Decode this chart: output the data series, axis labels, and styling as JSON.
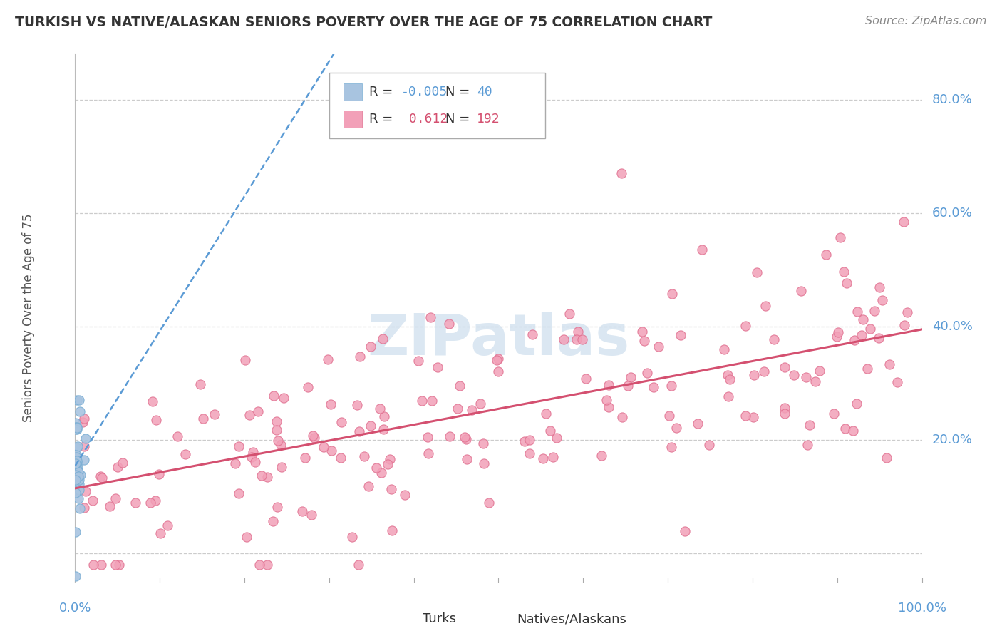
{
  "title": "TURKISH VS NATIVE/ALASKAN SENIORS POVERTY OVER THE AGE OF 75 CORRELATION CHART",
  "source": "Source: ZipAtlas.com",
  "ylabel": "Seniors Poverty Over the Age of 75",
  "xlim": [
    0.0,
    1.0
  ],
  "ylim": [
    -0.05,
    0.88
  ],
  "turkish_R": -0.005,
  "turkish_N": 40,
  "native_R": 0.612,
  "native_N": 192,
  "turkish_color": "#a8c4e0",
  "turkish_edge_color": "#7bafd4",
  "native_color": "#f2a0b8",
  "native_edge_color": "#e07090",
  "turkish_line_color": "#5b9bd5",
  "native_line_color": "#d45070",
  "background_color": "#ffffff",
  "grid_color": "#cccccc",
  "watermark": "ZIPatlas",
  "title_color": "#333333",
  "source_color": "#888888",
  "axis_label_color": "#5b9bd5",
  "ylabel_color": "#555555",
  "legend_R_label_color": "#333333",
  "legend_N_label_color": "#333333"
}
